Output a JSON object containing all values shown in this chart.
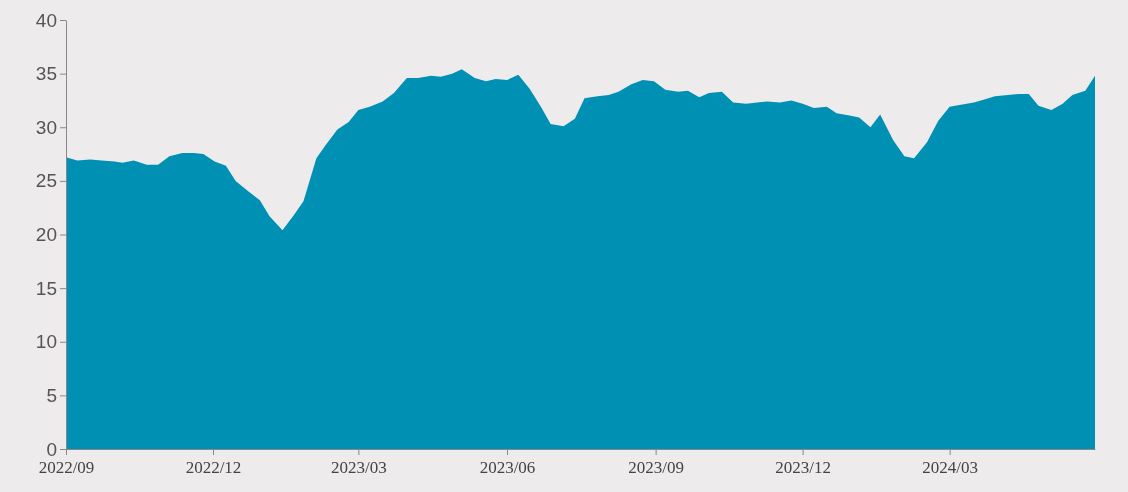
{
  "chart_data": {
    "type": "area",
    "x": [
      "2022-09-01",
      "2022-09-08",
      "2022-09-16",
      "2022-09-23",
      "2022-10-01",
      "2022-10-06",
      "2022-10-13",
      "2022-10-21",
      "2022-10-28",
      "2022-11-04",
      "2022-11-12",
      "2022-11-19",
      "2022-11-25",
      "2022-12-02",
      "2022-12-09",
      "2022-12-15",
      "2022-12-23",
      "2022-12-30",
      "2023-01-05",
      "2023-01-13",
      "2023-01-20",
      "2023-01-26",
      "2023-02-03",
      "2023-02-09",
      "2023-02-16",
      "2023-02-23",
      "2023-03-01",
      "2023-03-08",
      "2023-03-16",
      "2023-03-23",
      "2023-03-31",
      "2023-04-07",
      "2023-04-15",
      "2023-04-21",
      "2023-04-28",
      "2023-05-04",
      "2023-05-12",
      "2023-05-19",
      "2023-05-25",
      "2023-06-01",
      "2023-06-08",
      "2023-06-15",
      "2023-06-22",
      "2023-06-28",
      "2023-07-06",
      "2023-07-13",
      "2023-07-19",
      "2023-07-27",
      "2023-08-03",
      "2023-08-09",
      "2023-08-17",
      "2023-08-24",
      "2023-08-31",
      "2023-09-07",
      "2023-09-15",
      "2023-09-21",
      "2023-09-28",
      "2023-10-04",
      "2023-10-12",
      "2023-10-19",
      "2023-10-27",
      "2023-11-03",
      "2023-11-09",
      "2023-11-17",
      "2023-11-24",
      "2023-12-01",
      "2023-12-08",
      "2023-12-16",
      "2023-12-22",
      "2023-12-30",
      "2024-01-05",
      "2024-01-12",
      "2024-01-18",
      "2024-01-26",
      "2024-02-02",
      "2024-02-08",
      "2024-02-16",
      "2024-02-23",
      "2024-03-01",
      "2024-03-08",
      "2024-03-16",
      "2024-03-23",
      "2024-03-29",
      "2024-04-06",
      "2024-04-13",
      "2024-04-19",
      "2024-04-25",
      "2024-05-03",
      "2024-05-10",
      "2024-05-16",
      "2024-05-24",
      "2024-05-30"
    ],
    "series": [
      {
        "color": "#0090b4",
        "values": [
          27.2,
          26.9,
          27.0,
          26.9,
          26.8,
          26.7,
          26.9,
          26.5,
          26.5,
          27.3,
          27.6,
          27.6,
          27.5,
          26.8,
          26.4,
          25.0,
          24.0,
          23.2,
          21.7,
          20.4,
          21.8,
          23.1,
          27.1,
          28.4,
          29.8,
          30.5,
          31.6,
          31.9,
          32.4,
          33.2,
          34.6,
          34.6,
          34.8,
          34.7,
          35.0,
          35.4,
          34.6,
          34.3,
          34.5,
          34.4,
          34.9,
          33.6,
          31.9,
          30.3,
          30.1,
          30.8,
          32.7,
          32.9,
          33.0,
          33.3,
          34.0,
          34.4,
          34.3,
          33.5,
          33.3,
          33.4,
          32.8,
          33.2,
          33.3,
          32.3,
          32.2,
          32.3,
          32.4,
          32.3,
          32.5,
          32.2,
          31.8,
          31.9,
          31.3,
          31.1,
          30.9,
          30.0,
          31.2,
          28.8,
          27.3,
          27.1,
          28.6,
          30.6,
          31.9,
          32.1,
          32.3,
          32.6,
          32.9,
          33.0,
          33.1,
          33.1,
          32.0,
          31.6,
          32.2,
          33.0,
          33.4,
          34.8
        ]
      }
    ],
    "xlim": [
      "2022-09-01",
      "2024-05-30"
    ],
    "xticks": [
      {
        "value": "2022-09-01",
        "label": "2022/09"
      },
      {
        "value": "2022-12-01",
        "label": "2022/12"
      },
      {
        "value": "2023-03-01",
        "label": "2023/03"
      },
      {
        "value": "2023-06-01",
        "label": "2023/06"
      },
      {
        "value": "2023-09-01",
        "label": "2023/09"
      },
      {
        "value": "2023-12-01",
        "label": "2023/12"
      },
      {
        "value": "2024-03-01",
        "label": "2024/03"
      }
    ],
    "ylim": [
      0,
      40
    ],
    "yticks": [
      0,
      5,
      10,
      15,
      20,
      25,
      30,
      35,
      40
    ]
  }
}
